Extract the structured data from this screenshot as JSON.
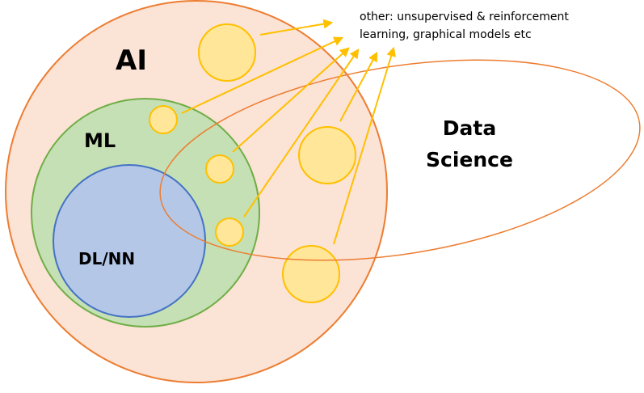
{
  "labels": {
    "ai": "AI",
    "ml": "ML",
    "dl_nn": "DL/NN",
    "data_science_line1": "Data",
    "data_science_line2": "Science",
    "other_line1": "other: unsupervised & reinforcement",
    "other_line2": "learning, graphical models etc"
  },
  "colors": {
    "ai_fill": "#fbe3d6",
    "ai_stroke": "#ed7d31",
    "ml_fill": "#c5e0b4",
    "ml_stroke": "#70ad47",
    "dl_fill": "#b4c7e7",
    "dl_stroke": "#4472c4",
    "other_fill": "#ffe699",
    "other_stroke": "#ffc000",
    "data_science_stroke": "#ed7d31",
    "arrow": "#ffc000"
  }
}
